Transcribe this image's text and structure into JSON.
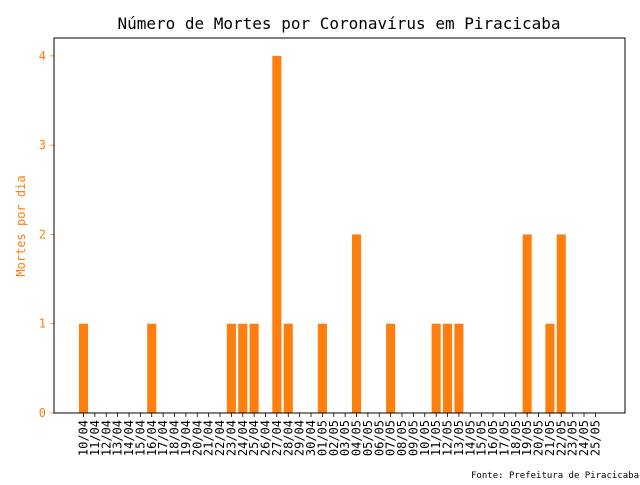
{
  "chart_data": {
    "type": "bar",
    "title": "Número de Mortes por Coronavírus em Piracicaba",
    "xlabel": "",
    "ylabel": "Mortes por dia",
    "ylim": [
      0,
      4.2
    ],
    "yticks": [
      0,
      1,
      2,
      3,
      4
    ],
    "grid": false,
    "categories": [
      "10/04",
      "11/04",
      "12/04",
      "13/04",
      "14/04",
      "15/04",
      "16/04",
      "17/04",
      "18/04",
      "19/04",
      "20/04",
      "21/04",
      "22/04",
      "23/04",
      "24/04",
      "25/04",
      "26/04",
      "27/04",
      "28/04",
      "29/04",
      "30/04",
      "01/05",
      "02/05",
      "03/05",
      "04/05",
      "05/05",
      "06/05",
      "07/05",
      "08/05",
      "09/05",
      "10/05",
      "11/05",
      "12/05",
      "13/05",
      "14/05",
      "15/05",
      "16/05",
      "17/05",
      "18/05",
      "19/05",
      "20/05",
      "21/05",
      "22/05",
      "23/05",
      "24/05",
      "25/05"
    ],
    "values": [
      1,
      0,
      0,
      0,
      0,
      0,
      1,
      0,
      0,
      0,
      0,
      0,
      0,
      1,
      1,
      1,
      0,
      4,
      1,
      0,
      0,
      1,
      0,
      0,
      2,
      0,
      0,
      1,
      0,
      0,
      0,
      1,
      1,
      1,
      0,
      0,
      0,
      0,
      0,
      2,
      0,
      1,
      2,
      0,
      0,
      0
    ],
    "bar_color": "#ff7f0e",
    "axis_color": "#ff7f0e"
  },
  "source_note": "Fonte: Prefeitura de Piracicaba"
}
